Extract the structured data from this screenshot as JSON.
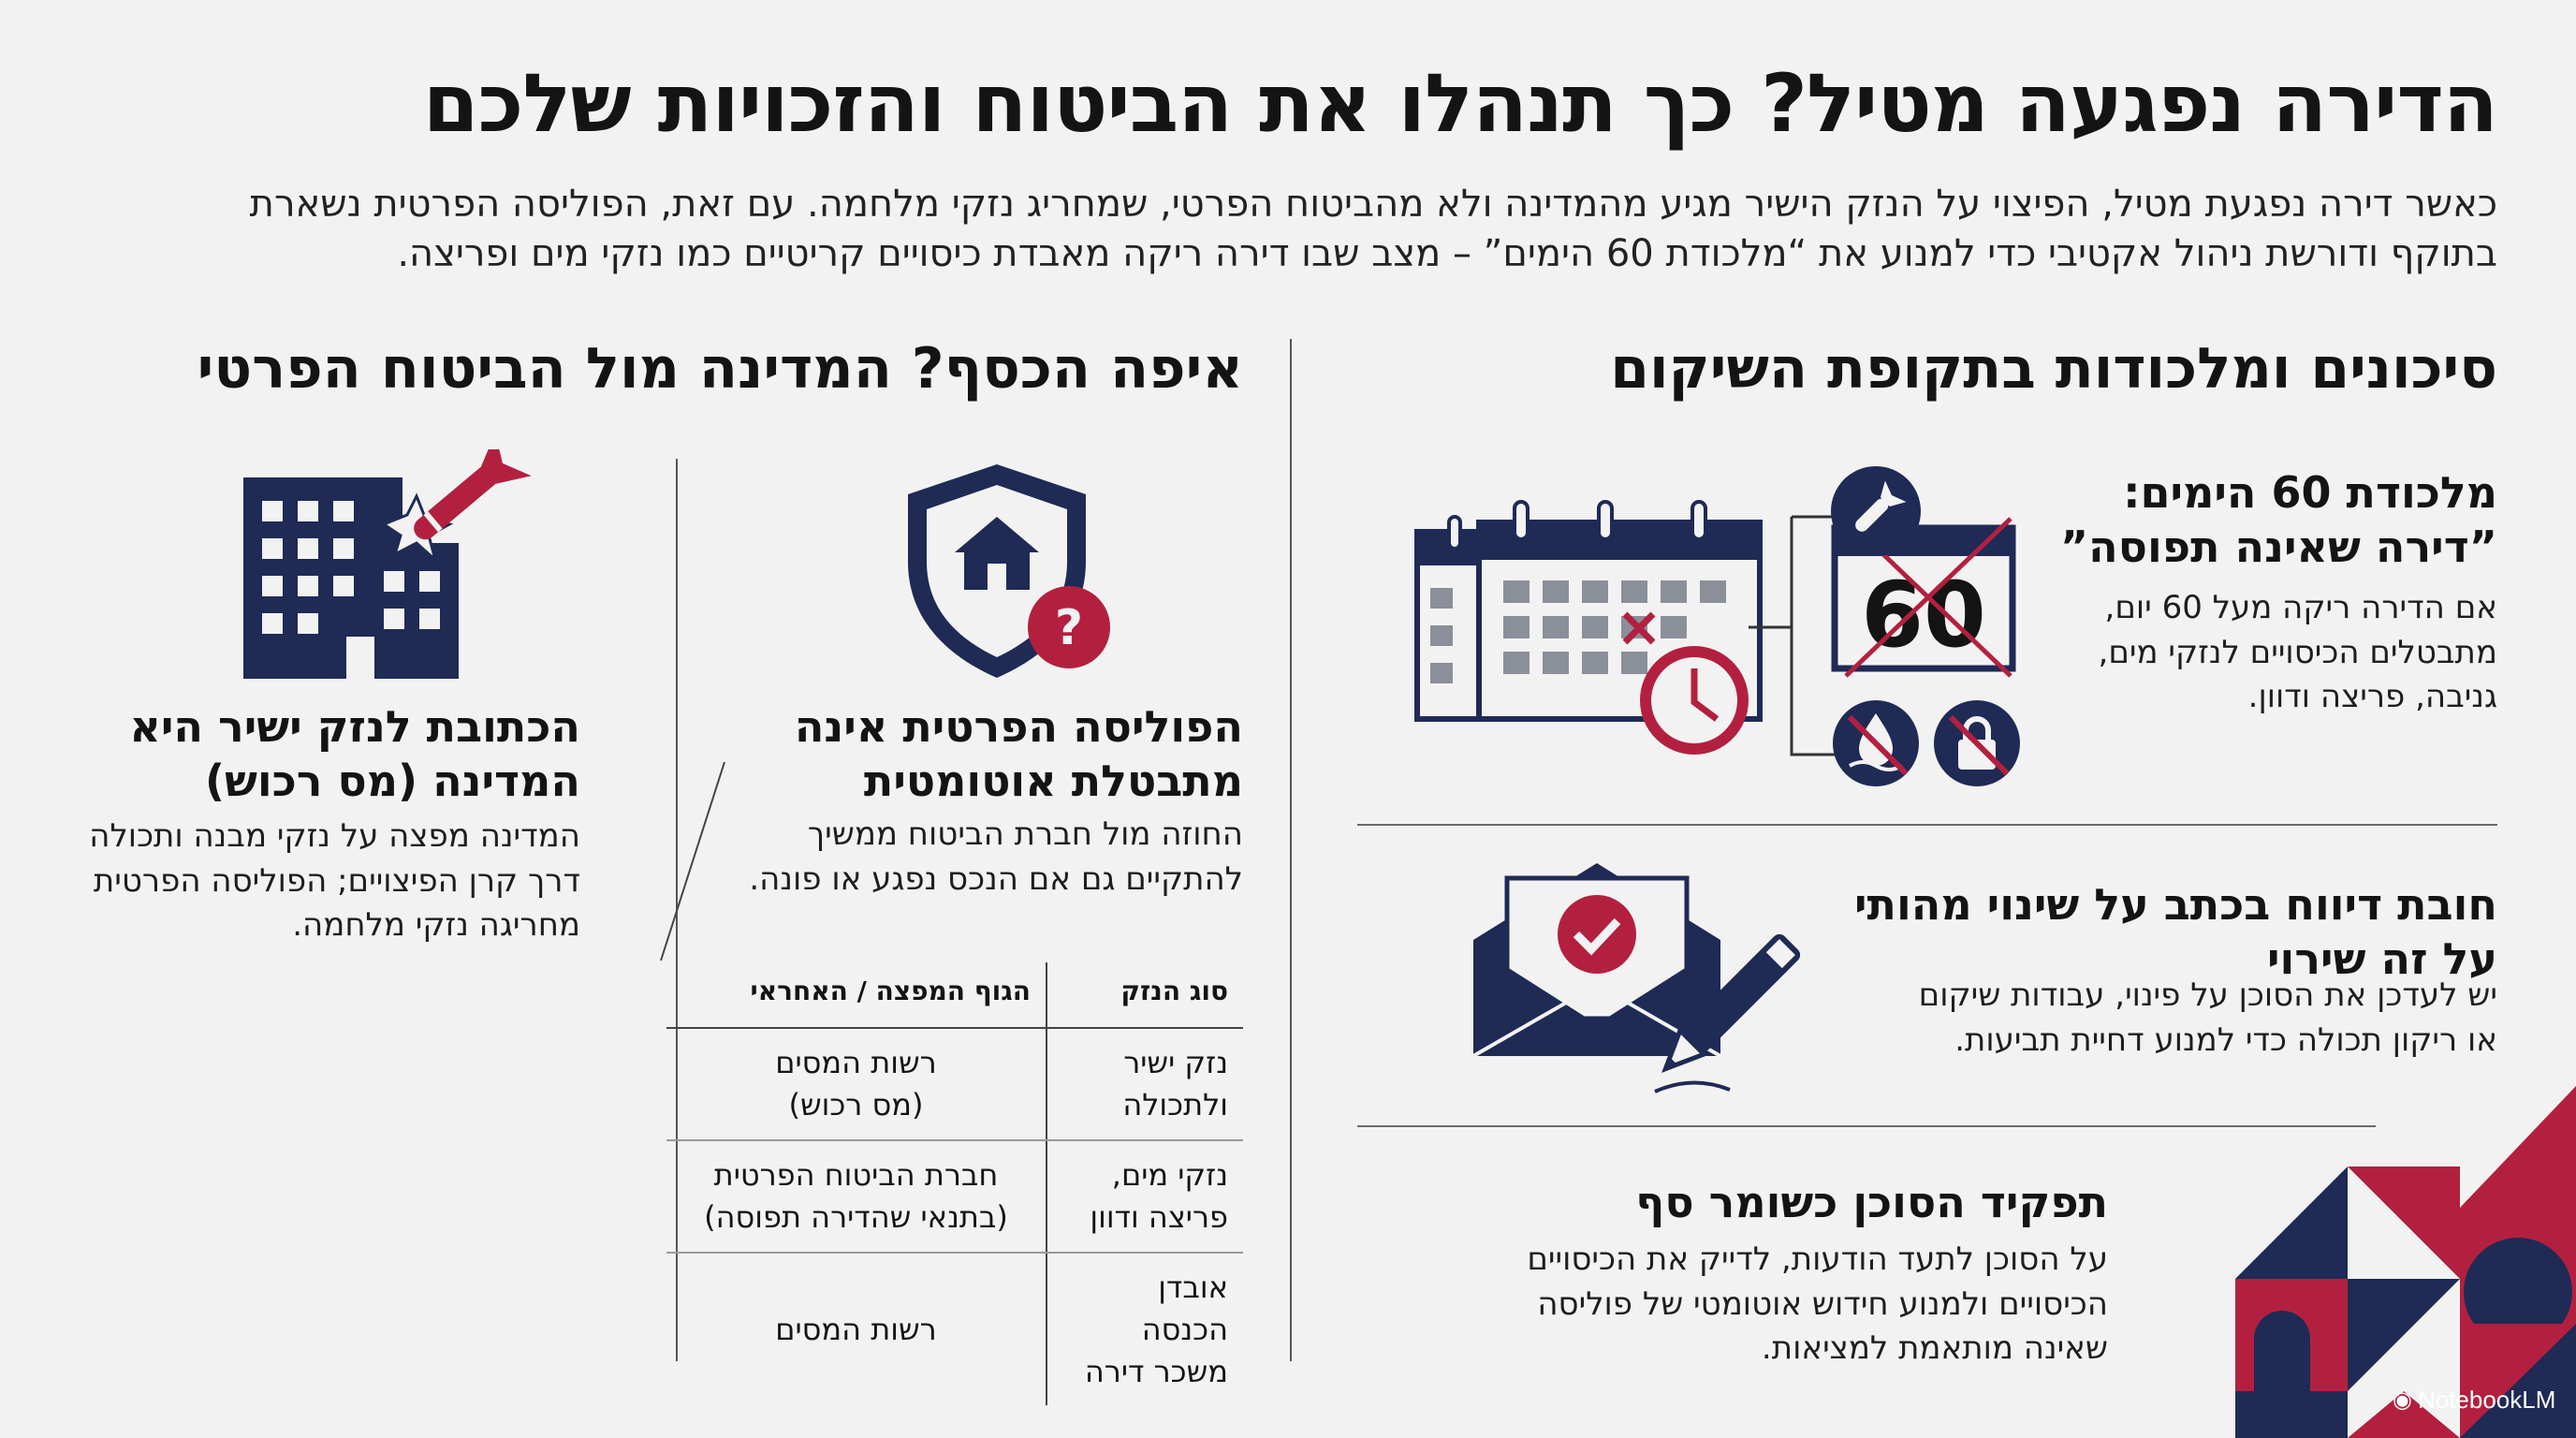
{
  "header": {
    "title": "הדירה נפגעה מטיל? כך תנהלו את הביטוח והזכויות שלכם",
    "subtitle_line1": "כאשר דירה נפגעת מטיל, הפיצוי על הנזק הישיר מגיע מהמדינה ולא מהביטוח הפרטי, שמחריג נזקי מלחמה. עם זאת, הפוליסה הפרטית נשארת",
    "subtitle_line2": "בתוקף ודורשת ניהול אקטיבי כדי למנוע את “מלכודת 60 הימים” – מצב שבו דירה ריקה מאבדת כיסויים קריטיים כמו נזקי מים ופריצה."
  },
  "right_section": {
    "title": "סיכונים ומלכודות בתקופת השיקום",
    "trap": {
      "heading_line1": "מלכודת 60 הימים:",
      "heading_line2": "”דירה שאינה תפוסה”",
      "body_line1": "אם הדירה ריקה מעל 60 יום,",
      "body_line2": "מתבטלים הכיסויים לנזקי מים,",
      "body_line3": "גניבה, פריצה ודוון.",
      "calendar_number": "60"
    },
    "report": {
      "heading_line1": "חובת דיווח בכתב על שינוי מהותי",
      "heading_line2": "על זה שירוי",
      "body_line1": "יש לעדכן את הסוכן על פינוי, עבודות שיקום",
      "body_line2": "או ריקון תכולה כדי למנוע דחיית תביעות."
    },
    "agent": {
      "heading": "תפקיד הסוכן כשומר סף",
      "body_line1": "על הסוכן לתעד הודעות, לדייק את הכיסויים",
      "body_line2": "הכיסויים ולמנוע חידוש אוטומטי של פוליסה",
      "body_line3": "שאינה מותאמת למציאות."
    }
  },
  "left_section": {
    "title": "איפה הכסף? המדינה מול הביטוח הפרטי",
    "state": {
      "heading_line1": "הכתובת לנזק ישיר היא",
      "heading_line2": "המדינה (מס רכוש)",
      "body_line1": "המדינה מפצה על נזקי מבנה ותכולה",
      "body_line2": "דרך קרן הפיצויים; הפוליסה הפרטית",
      "body_line3": "מחריגה נזקי מלחמה."
    },
    "policy": {
      "heading_line1": "הפוליסה הפרטית אינה",
      "heading_line2": "מתבטלת אוטומטית",
      "body_line1": "החוזה מול חברת הביטוח ממשיך",
      "body_line2": "להתקיים גם אם הנכס נפגע או פונה."
    },
    "table": {
      "col1": "סוג הנזק",
      "col2": "הגוף המפצה / האחראי",
      "rows": [
        {
          "type_line1": "נזק ישיר",
          "type_line2": "ולתכולה",
          "body_line1": "רשות המסים",
          "body_line2": "(מס רכוש)"
        },
        {
          "type_line1": "נזקי מים,",
          "type_line2": "פריצה ודוון",
          "body_line1": "חברת הביטוח הפרטית",
          "body_line2": "(בתנאי שהדירה תפוסה)"
        },
        {
          "type_line1": "אובדן הכנסה",
          "type_line2": "משכר דירה",
          "body_line1": "רשות המסים",
          "body_line2": ""
        }
      ]
    }
  },
  "badge": {
    "label": "NotebookLM"
  },
  "colors": {
    "navy": "#1f2a55",
    "red": "#b3203f",
    "background": "#f2f2f2"
  },
  "icons": [
    "building-hit-by-missile-icon",
    "shield-home-question-icon",
    "calendar-clock-icon",
    "calendar-60-crossed-icon",
    "missile-icon",
    "water-damage-icon",
    "burglary-lock-icon",
    "envelope-check-icon",
    "pen-icon",
    "geometric-decoration"
  ]
}
